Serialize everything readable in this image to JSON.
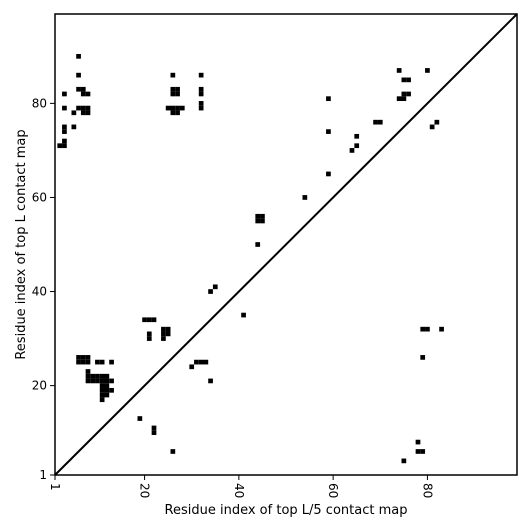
{
  "chart_data": {
    "type": "heatmap",
    "title": "",
    "xlabel": "Residue index of top L/5 contact map",
    "ylabel": "Residue index of top L contact map",
    "xlim": [
      1,
      99
    ],
    "ylim": [
      1,
      99
    ],
    "x_ticks": [
      1,
      20,
      40,
      60,
      80
    ],
    "y_ticks": [
      1,
      20,
      40,
      60,
      80
    ],
    "x_tick_labels": [
      "1",
      "20",
      "40",
      "60",
      "80"
    ],
    "y_tick_labels": [
      "1",
      "20",
      "40",
      "60",
      "80"
    ],
    "x_tick_rotation": "vertical",
    "diagonal": true,
    "grid": false,
    "cell_color": "#000000",
    "line_color": "#000000",
    "background": "#ffffff",
    "top_L_contacts": [
      [
        6,
        90
      ],
      [
        6,
        86
      ],
      [
        7,
        82
      ],
      [
        8,
        82
      ],
      [
        3,
        82
      ],
      [
        6,
        83
      ],
      [
        7,
        83
      ],
      [
        6,
        79
      ],
      [
        7,
        79
      ],
      [
        8,
        79
      ],
      [
        3,
        79
      ],
      [
        5,
        75
      ],
      [
        3,
        75
      ],
      [
        3,
        74
      ],
      [
        3,
        72
      ],
      [
        2,
        71
      ],
      [
        3,
        71
      ],
      [
        7,
        78
      ],
      [
        8,
        78
      ],
      [
        5,
        78
      ],
      [
        26,
        86
      ],
      [
        32,
        86
      ],
      [
        26,
        83
      ],
      [
        27,
        83
      ],
      [
        26,
        82
      ],
      [
        27,
        82
      ],
      [
        32,
        83
      ],
      [
        32,
        82
      ],
      [
        25,
        79
      ],
      [
        26,
        79
      ],
      [
        27,
        79
      ],
      [
        28,
        79
      ],
      [
        26,
        78
      ],
      [
        27,
        78
      ],
      [
        32,
        80
      ],
      [
        32,
        79
      ],
      [
        59,
        81
      ],
      [
        59,
        74
      ],
      [
        74,
        87
      ],
      [
        80,
        87
      ],
      [
        75,
        85
      ],
      [
        76,
        85
      ],
      [
        75,
        82
      ],
      [
        76,
        82
      ],
      [
        74,
        81
      ],
      [
        75,
        81
      ],
      [
        69,
        76
      ],
      [
        70,
        76
      ],
      [
        82,
        76
      ],
      [
        81,
        75
      ],
      [
        65,
        73
      ],
      [
        65,
        71
      ],
      [
        64,
        70
      ],
      [
        59,
        65
      ],
      [
        54,
        60
      ],
      [
        44,
        56
      ],
      [
        45,
        56
      ],
      [
        44,
        55
      ],
      [
        45,
        55
      ],
      [
        44,
        50
      ],
      [
        35,
        41
      ],
      [
        34,
        40
      ]
    ],
    "top_L5_contacts": [
      [
        6,
        26
      ],
      [
        7,
        26
      ],
      [
        8,
        26
      ],
      [
        6,
        25
      ],
      [
        7,
        25
      ],
      [
        8,
        25
      ],
      [
        10,
        25
      ],
      [
        11,
        25
      ],
      [
        13,
        25
      ],
      [
        8,
        23
      ],
      [
        8,
        22
      ],
      [
        9,
        22
      ],
      [
        10,
        22
      ],
      [
        11,
        22
      ],
      [
        12,
        22
      ],
      [
        8,
        21
      ],
      [
        9,
        21
      ],
      [
        10,
        21
      ],
      [
        11,
        21
      ],
      [
        12,
        21
      ],
      [
        13,
        21
      ],
      [
        11,
        20
      ],
      [
        12,
        20
      ],
      [
        11,
        19
      ],
      [
        12,
        19
      ],
      [
        13,
        19
      ],
      [
        11,
        18
      ],
      [
        12,
        18
      ],
      [
        11,
        17
      ],
      [
        20,
        34
      ],
      [
        21,
        34
      ],
      [
        22,
        34
      ],
      [
        21,
        31
      ],
      [
        21,
        30
      ],
      [
        24,
        32
      ],
      [
        25,
        32
      ],
      [
        24,
        31
      ],
      [
        25,
        31
      ],
      [
        24,
        30
      ],
      [
        31,
        25
      ],
      [
        32,
        25
      ],
      [
        33,
        25
      ],
      [
        30,
        24
      ],
      [
        34,
        21
      ],
      [
        41,
        35
      ],
      [
        19,
        13
      ],
      [
        22,
        11
      ],
      [
        22,
        10
      ],
      [
        26,
        6
      ],
      [
        79,
        32
      ],
      [
        80,
        32
      ],
      [
        83,
        32
      ],
      [
        79,
        26
      ],
      [
        78,
        8
      ],
      [
        78,
        6
      ],
      [
        79,
        6
      ],
      [
        75,
        4
      ]
    ]
  }
}
